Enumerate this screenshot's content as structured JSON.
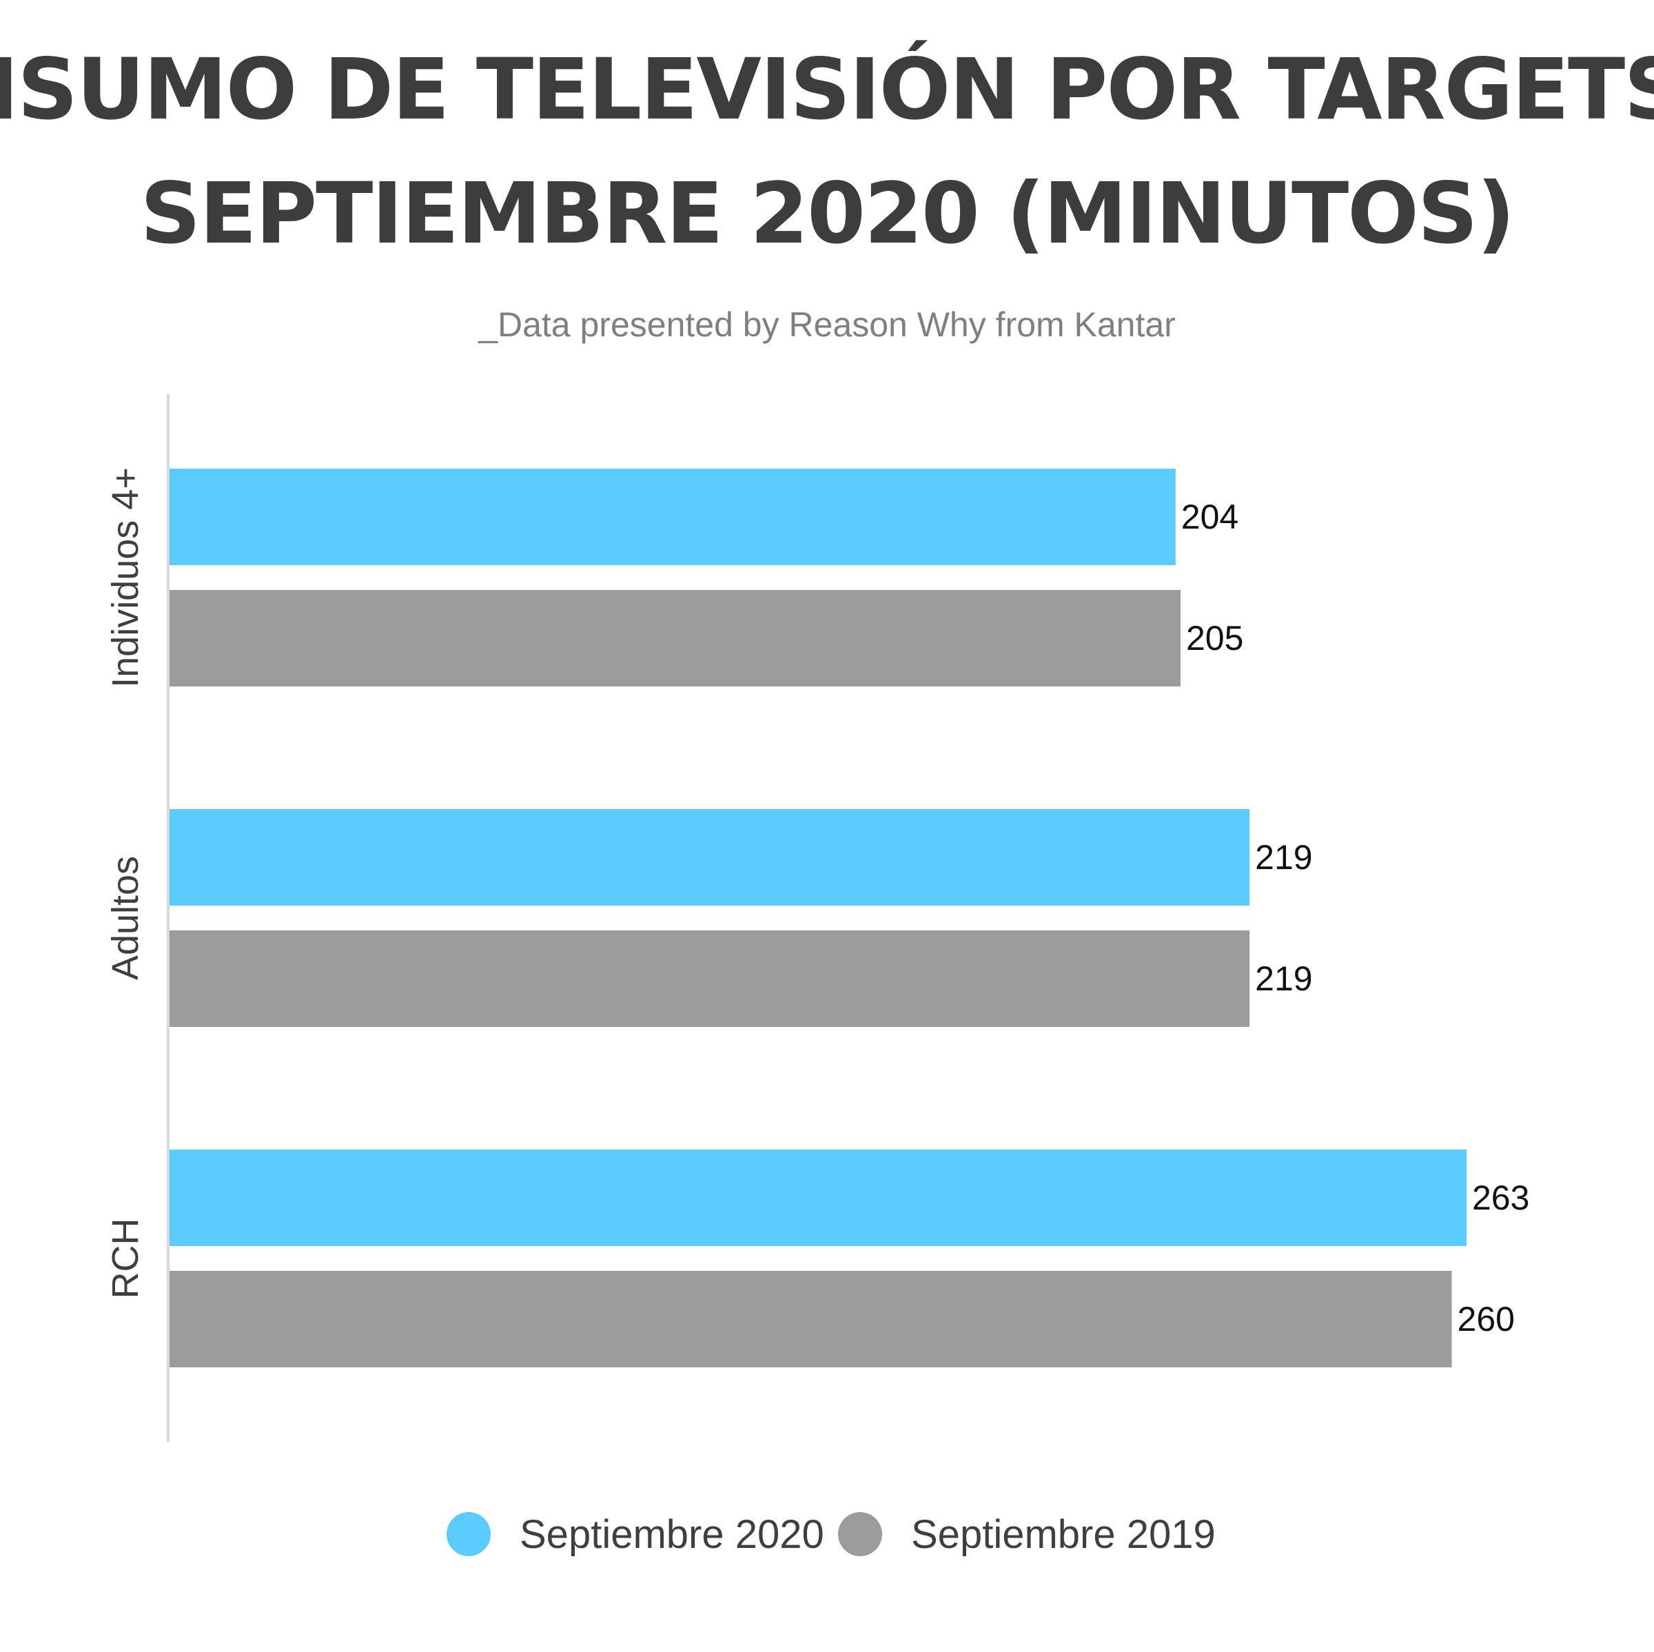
{
  "chart_data": {
    "type": "bar",
    "orientation": "horizontal",
    "title_lines": [
      "CONSUMO DE TELEVISIÓN POR TARGETS EN",
      "SEPTIEMBRE 2020 (MINUTOS)"
    ],
    "subtitle": "_Data presented by Reason Why from Kantar",
    "categories": [
      "Individuos 4+",
      "Adultos",
      "RCH"
    ],
    "series": [
      {
        "name": "Septiembre 2020",
        "color": "#5ACBFC",
        "values": [
          204,
          219,
          263
        ]
      },
      {
        "name": "Septiembre 2019",
        "color": "#9B9B9B",
        "values": [
          205,
          219,
          260
        ]
      }
    ],
    "xlim": [
      0,
      263
    ],
    "grid": false,
    "legend_position": "bottom-center",
    "data_labels": true
  }
}
